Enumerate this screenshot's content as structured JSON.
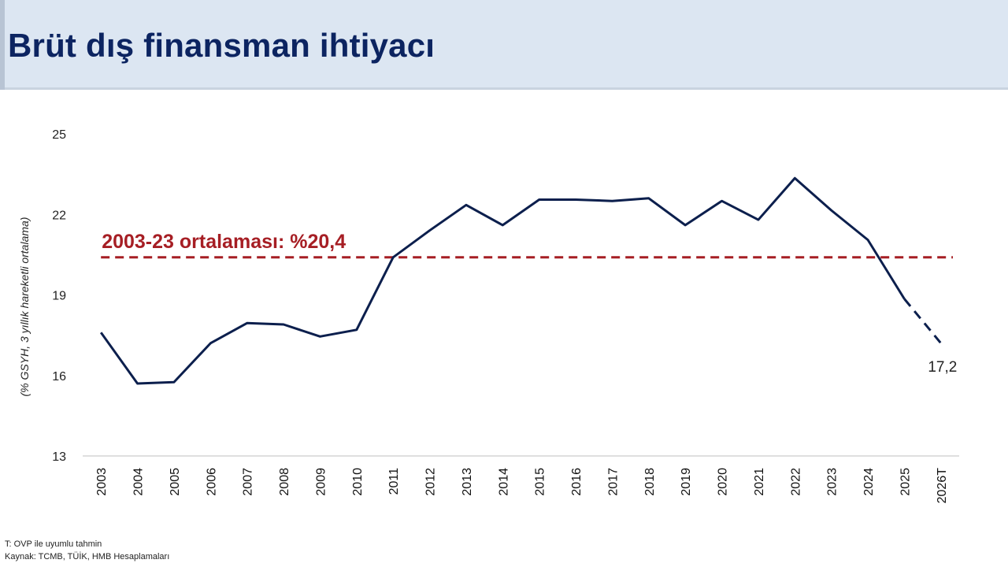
{
  "header": {
    "title": "Brüt dış finansman ihtiyacı"
  },
  "footnotes": {
    "note": "T: OVP ile uyumlu tahmin",
    "source": "Kaynak: TCMB, TÜİK, HMB Hesaplamaları"
  },
  "chart_data": {
    "type": "line",
    "ylabel": "(% GSYH, 3 yıllık hareketli ortalama)",
    "ylim": [
      13,
      25
    ],
    "yticks": [
      13,
      16,
      19,
      22,
      25
    ],
    "categories": [
      "2003",
      "2004",
      "2005",
      "2006",
      "2007",
      "2008",
      "2009",
      "2010",
      "2011",
      "2012",
      "2013",
      "2014",
      "2015",
      "2016",
      "2017",
      "2018",
      "2019",
      "2020",
      "2021",
      "2022",
      "2023",
      "2024",
      "2025",
      "2026T"
    ],
    "series": [
      {
        "values": [
          17.6,
          15.7,
          15.75,
          17.2,
          17.95,
          17.9,
          17.45,
          17.7,
          20.4,
          21.4,
          22.35,
          21.6,
          22.55,
          22.55,
          22.5,
          22.6,
          21.6,
          22.5,
          21.8,
          23.35,
          22.15,
          21.05,
          18.85,
          17.2
        ],
        "color": "#0c1f4d",
        "dashed_from_index": 22
      }
    ],
    "average": {
      "value": 20.4,
      "label": "2003-23 ortalaması: %20,4",
      "color": "#a61e24"
    },
    "annotations": [
      {
        "category": "2026T",
        "text": "17,2"
      }
    ],
    "grid": false,
    "legend": "none"
  }
}
